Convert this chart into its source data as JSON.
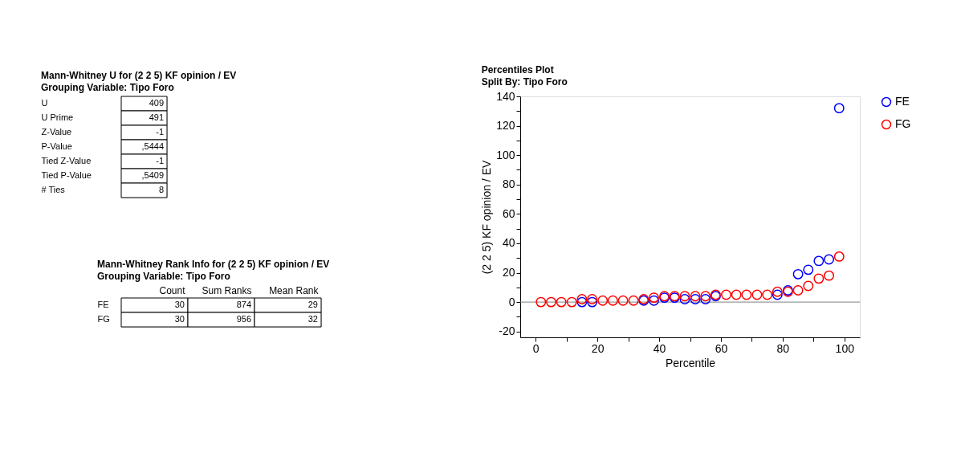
{
  "chart_data": [
    {
      "type": "other",
      "title": "Mann-Whitney U for (2 2 5) KF opinion / EV",
      "subtitle": "Grouping Variable: Tipo Foro",
      "categories": [
        "U",
        "U Prime",
        "Z-Value",
        "P-Value",
        "Tied Z-Value",
        "Tied P-Value",
        "# Ties"
      ],
      "value_labels": [
        "409",
        "491",
        "-1",
        ",5444",
        "-1",
        ",5409",
        "8"
      ]
    },
    {
      "type": "other",
      "title": "Mann-Whitney Rank Info for (2 2 5) KF opinion / EV",
      "subtitle": "Grouping Variable: Tipo Foro",
      "categories": [
        "FE",
        "FG"
      ],
      "series": [
        {
          "name": "Count",
          "values": [
            30,
            30
          ]
        },
        {
          "name": "Sum Ranks",
          "values": [
            874,
            956
          ]
        },
        {
          "name": "Mean Rank",
          "values": [
            29,
            32
          ]
        }
      ],
      "data_labels": true
    },
    {
      "type": "scatter",
      "title": "Percentiles Plot",
      "subtitle": "Split By: Tipo Foro",
      "xlabel": "Percentile",
      "ylabel": "(2 2 5) KF opinion / EV",
      "x": [
        1.7,
        5,
        8.3,
        11.7,
        15,
        18.3,
        21.7,
        25,
        28.3,
        31.7,
        35,
        38.3,
        41.7,
        45,
        48.3,
        51.7,
        55,
        58.3,
        61.7,
        65,
        68.3,
        71.7,
        75,
        78.3,
        81.7,
        85,
        88.3,
        91.7,
        95,
        98.3
      ],
      "series": [
        {
          "name": "FE",
          "color": "#0000ff",
          "values": [
            null,
            null,
            null,
            null,
            0,
            0,
            null,
            null,
            null,
            null,
            1,
            1,
            3,
            3,
            2,
            2,
            2,
            4,
            null,
            null,
            null,
            null,
            null,
            5,
            8,
            19,
            22,
            28,
            29,
            132
          ]
        },
        {
          "name": "FG",
          "color": "#ff0000",
          "values": [
            0,
            0,
            0,
            0,
            2,
            2,
            1,
            1,
            1,
            1,
            2,
            3,
            4,
            4,
            4,
            4,
            4,
            5,
            5,
            5,
            5,
            5,
            5,
            7,
            7,
            8,
            11,
            16,
            18,
            31
          ]
        }
      ],
      "xlim": [
        -5,
        105
      ],
      "ylim": [
        -24,
        140
      ],
      "xticks": [
        0,
        {
          "value": 10,
          "label": null
        },
        20,
        {
          "value": 30,
          "label": null
        },
        40,
        {
          "value": 50,
          "label": null
        },
        60,
        {
          "value": 70,
          "label": null
        },
        80,
        {
          "value": 90,
          "label": null
        },
        100
      ],
      "yticks": [
        -20,
        {
          "value": -10,
          "label": null
        },
        0,
        {
          "value": 10,
          "label": null
        },
        20,
        {
          "value": 30,
          "label": null
        },
        40,
        {
          "value": 50,
          "label": null
        },
        60,
        {
          "value": 70,
          "label": null
        },
        80,
        {
          "value": 90,
          "label": null
        },
        100,
        {
          "value": 110,
          "label": null
        },
        120,
        {
          "value": 130,
          "label": null
        },
        140
      ],
      "ref_lines": [
        {
          "axis": "y",
          "value": 0,
          "color": "#808080"
        }
      ],
      "grid": false,
      "legend": "right",
      "marker": "circle"
    }
  ]
}
